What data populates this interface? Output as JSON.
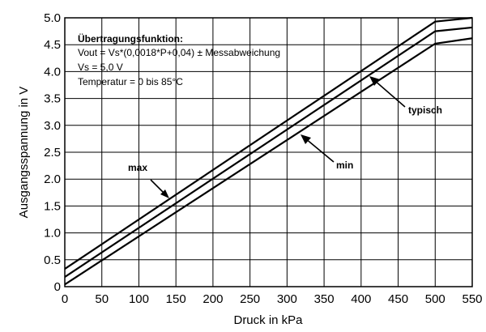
{
  "chart_data": {
    "type": "line",
    "xlabel": "Druck in kPa",
    "ylabel": "Ausgangsspannung in V",
    "xlim": [
      0,
      550
    ],
    "ylim": [
      0,
      5.0
    ],
    "x_ticks": [
      "0",
      "50",
      "100",
      "150",
      "200",
      "250",
      "300",
      "350",
      "400",
      "450",
      "500",
      "550"
    ],
    "y_ticks": [
      "0",
      "0.5",
      "1.0",
      "1.5",
      "2.0",
      "2.5",
      "3.0",
      "3.5",
      "4.0",
      "4.5",
      "5.0"
    ],
    "grid": true,
    "series": [
      {
        "name": "max",
        "x": [
          0,
          500,
          550
        ],
        "y": [
          0.33,
          4.93,
          5.0
        ]
      },
      {
        "name": "typisch",
        "x": [
          0,
          500,
          550
        ],
        "y": [
          0.18,
          4.75,
          4.82
        ]
      },
      {
        "name": "min",
        "x": [
          0,
          500,
          550
        ],
        "y": [
          0.04,
          4.52,
          4.62
        ]
      }
    ],
    "labels": {
      "max": "max",
      "typisch": "typisch",
      "min": "min"
    },
    "annotation": {
      "title": "Übertragungsfunktion:",
      "formula": "Vout = Vs*(0,0018*P+0,04) ± Messabweichung",
      "supply": "Vs = 5,0 V",
      "temperature": "Temperatur = 0 bis 85°C"
    }
  }
}
